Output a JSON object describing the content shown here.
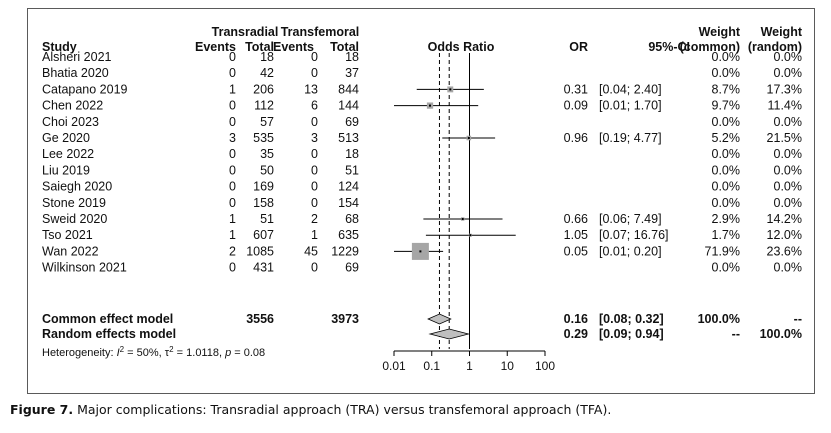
{
  "chart_data": {
    "type": "forest",
    "header": {
      "group1": "Transradial",
      "group2": "Transfemoral",
      "study": "Study",
      "events": "Events",
      "total": "Total",
      "plot": "Odds Ratio",
      "or": "OR",
      "ci": "95%-CI",
      "weight": "Weight",
      "weight_common": "(common)",
      "weight_random": "(random)"
    },
    "studies": [
      {
        "name": "Alsheri 2021",
        "e1": "0",
        "n1": "18",
        "e2": "0",
        "n2": "18",
        "or": null,
        "lo": null,
        "hi": null,
        "or_text": "",
        "ci_text": "",
        "w_common": "0.0%",
        "w_random": "0.0%"
      },
      {
        "name": "Bhatia 2020",
        "e1": "0",
        "n1": "42",
        "e2": "0",
        "n2": "37",
        "or": null,
        "lo": null,
        "hi": null,
        "or_text": "",
        "ci_text": "",
        "w_common": "0.0%",
        "w_random": "0.0%"
      },
      {
        "name": "Catapano 2019",
        "e1": "1",
        "n1": "206",
        "e2": "13",
        "n2": "844",
        "or": 0.31,
        "lo": 0.04,
        "hi": 2.4,
        "or_text": "0.31",
        "ci_text": "[0.04; 2.40]",
        "w_common": "8.7%",
        "w_random": "17.3%"
      },
      {
        "name": "Chen 2022",
        "e1": "0",
        "n1": "112",
        "e2": "6",
        "n2": "144",
        "or": 0.09,
        "lo": 0.01,
        "hi": 1.7,
        "or_text": "0.09",
        "ci_text": "[0.01; 1.70]",
        "w_common": "9.7%",
        "w_random": "11.4%"
      },
      {
        "name": "Choi 2023",
        "e1": "0",
        "n1": "57",
        "e2": "0",
        "n2": "69",
        "or": null,
        "lo": null,
        "hi": null,
        "or_text": "",
        "ci_text": "",
        "w_common": "0.0%",
        "w_random": "0.0%"
      },
      {
        "name": "Ge 2020",
        "e1": "3",
        "n1": "535",
        "e2": "3",
        "n2": "513",
        "or": 0.96,
        "lo": 0.19,
        "hi": 4.77,
        "or_text": "0.96",
        "ci_text": "[0.19; 4.77]",
        "w_common": "5.2%",
        "w_random": "21.5%"
      },
      {
        "name": "Lee 2022",
        "e1": "0",
        "n1": "35",
        "e2": "0",
        "n2": "18",
        "or": null,
        "lo": null,
        "hi": null,
        "or_text": "",
        "ci_text": "",
        "w_common": "0.0%",
        "w_random": "0.0%"
      },
      {
        "name": "Liu 2019",
        "e1": "0",
        "n1": "50",
        "e2": "0",
        "n2": "51",
        "or": null,
        "lo": null,
        "hi": null,
        "or_text": "",
        "ci_text": "",
        "w_common": "0.0%",
        "w_random": "0.0%"
      },
      {
        "name": "Saiegh 2020",
        "e1": "0",
        "n1": "169",
        "e2": "0",
        "n2": "124",
        "or": null,
        "lo": null,
        "hi": null,
        "or_text": "",
        "ci_text": "",
        "w_common": "0.0%",
        "w_random": "0.0%"
      },
      {
        "name": "Stone 2019",
        "e1": "0",
        "n1": "158",
        "e2": "0",
        "n2": "154",
        "or": null,
        "lo": null,
        "hi": null,
        "or_text": "",
        "ci_text": "",
        "w_common": "0.0%",
        "w_random": "0.0%"
      },
      {
        "name": "Sweid 2020",
        "e1": "1",
        "n1": "51",
        "e2": "2",
        "n2": "68",
        "or": 0.66,
        "lo": 0.06,
        "hi": 7.49,
        "or_text": "0.66",
        "ci_text": "[0.06; 7.49]",
        "w_common": "2.9%",
        "w_random": "14.2%"
      },
      {
        "name": "Tso 2021",
        "e1": "1",
        "n1": "607",
        "e2": "1",
        "n2": "635",
        "or": 1.05,
        "lo": 0.07,
        "hi": 16.76,
        "or_text": "1.05",
        "ci_text": "[0.07; 16.76]",
        "w_common": "1.7%",
        "w_random": "12.0%"
      },
      {
        "name": "Wan 2022",
        "e1": "2",
        "n1": "1085",
        "e2": "45",
        "n2": "1229",
        "or": 0.05,
        "lo": 0.01,
        "hi": 0.2,
        "or_text": "0.05",
        "ci_text": "[0.01; 0.20]",
        "w_common": "71.9%",
        "w_random": "23.6%"
      },
      {
        "name": "Wilkinson 2021",
        "e1": "0",
        "n1": "431",
        "e2": "0",
        "n2": "69",
        "or": null,
        "lo": null,
        "hi": null,
        "or_text": "",
        "ci_text": "",
        "w_common": "0.0%",
        "w_random": "0.0%"
      }
    ],
    "common": {
      "label": "Common effect model",
      "n1": "3556",
      "n2": "3973",
      "or": 0.16,
      "lo": 0.08,
      "hi": 0.32,
      "or_text": "0.16",
      "ci_text": "[0.08; 0.32]",
      "w_common": "100.0%",
      "w_random": "--"
    },
    "random": {
      "label": "Random effects model",
      "or": 0.29,
      "lo": 0.09,
      "hi": 0.94,
      "or_text": "0.29",
      "ci_text": "[0.09; 0.94]",
      "w_common": "--",
      "w_random": "100.0%"
    },
    "heterogeneity": {
      "label": "Heterogeneity:",
      "i2": "50%",
      "tau2": "1.0118",
      "p": "0.08"
    },
    "xaxis": {
      "scale": "log",
      "ticks": [
        0.01,
        0.1,
        1,
        10,
        100
      ],
      "tick_labels": [
        "0.01",
        "0.1",
        "1",
        "10",
        "100"
      ],
      "null_line": 1
    },
    "colors": {
      "square": "#a6a6a6",
      "diamond": "#bfbfbf",
      "line": "#000000"
    }
  },
  "caption": {
    "label": "Figure 7.",
    "text": "Major complications: Transradial approach (TRA) versus transfemoral approach (TFA)."
  }
}
